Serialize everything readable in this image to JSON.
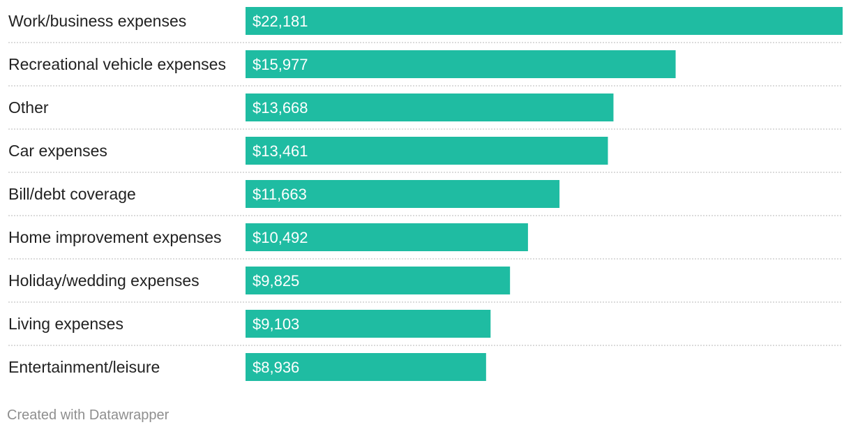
{
  "chart_data": {
    "type": "bar",
    "orientation": "horizontal",
    "categories": [
      "Work/business expenses",
      "Recreational vehicle expenses",
      "Other",
      "Car expenses",
      "Bill/debt coverage",
      "Home improvement expenses",
      "Holiday/wedding expenses",
      "Living expenses",
      "Entertainment/leisure"
    ],
    "values": [
      22181,
      15977,
      13668,
      13461,
      11663,
      10492,
      9825,
      9103,
      8936
    ],
    "value_labels": [
      "$22,181",
      "$15,977",
      "$13,668",
      "$13,461",
      "$11,663",
      "$10,492",
      "$9,825",
      "$9,103",
      "$8,936"
    ],
    "xlim": [
      0,
      22181
    ],
    "grid": false,
    "legend": "none",
    "bar_color": "#1fbca2"
  },
  "footer": {
    "credit": "Created with Datawrapper"
  }
}
